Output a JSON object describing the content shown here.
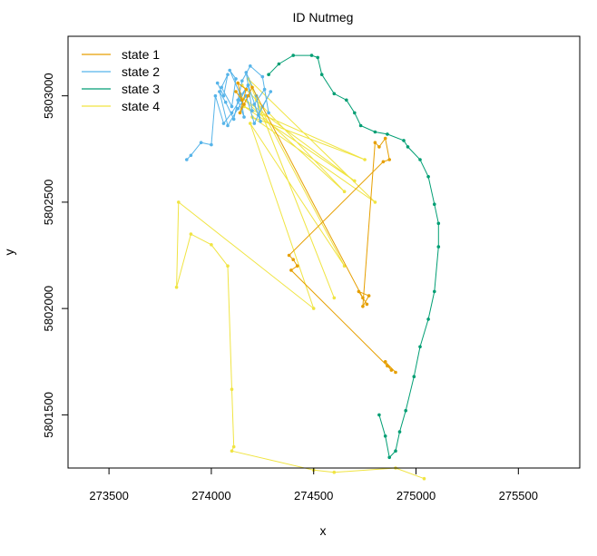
{
  "chart_data": {
    "type": "line",
    "title": "ID Nutmeg",
    "xlabel": "x",
    "ylabel": "y",
    "xlim": [
      273300,
      275800
    ],
    "ylim": [
      5801250,
      5803280
    ],
    "xticks": [
      273500,
      274000,
      274500,
      275000,
      275500
    ],
    "yticks": [
      5801500,
      5802000,
      5802500,
      5803000
    ],
    "xtick_labels": [
      "273500",
      "274000",
      "274500",
      "275000",
      "275500"
    ],
    "ytick_labels": [
      "5801500",
      "5802000",
      "5802500",
      "5803000"
    ],
    "grid": false,
    "legend_position": "top-left",
    "series": [
      {
        "name": "state 1",
        "color": "#E69F00",
        "x": [
          274120,
          274150,
          274130,
          274170,
          274140,
          274180,
          274160,
          274200,
          274740,
          274760,
          274720,
          274770,
          274740,
          274800,
          274820,
          274850,
          274870,
          274840,
          274380,
          274400,
          274420,
          274390,
          274860,
          274880,
          274850,
          274900
        ],
        "y": [
          5803020,
          5802980,
          5803060,
          5803030,
          5802920,
          5803000,
          5802960,
          5803040,
          5802050,
          5802020,
          5802080,
          5802060,
          5802010,
          5802780,
          5802760,
          5802800,
          5802700,
          5802690,
          5802250,
          5802230,
          5802200,
          5802180,
          5801730,
          5801710,
          5801750,
          5801700
        ]
      },
      {
        "name": "state 2",
        "color": "#56B4E9",
        "x": [
          274030,
          274060,
          274080,
          274050,
          274100,
          274120,
          274090,
          274140,
          274160,
          274130,
          274180,
          274200,
          274170,
          274220,
          274240,
          274210,
          274260,
          274280,
          274250,
          274190,
          274150,
          274110,
          274070,
          274040,
          274080,
          274130,
          274170,
          274210,
          274250,
          274290,
          274230,
          274180,
          274140,
          274100,
          274060,
          274020,
          274000,
          273950,
          273900,
          273880
        ],
        "y": [
          5803060,
          5803000,
          5803100,
          5803040,
          5802950,
          5803080,
          5803120,
          5803010,
          5802900,
          5802980,
          5803050,
          5802930,
          5803110,
          5803000,
          5802880,
          5802960,
          5803030,
          5802920,
          5803090,
          5803140,
          5803070,
          5802890,
          5802970,
          5803020,
          5802860,
          5802940,
          5803000,
          5802870,
          5802950,
          5803020,
          5802910,
          5803050,
          5802980,
          5802920,
          5802870,
          5803000,
          5802770,
          5802780,
          5802720,
          5802700
        ]
      },
      {
        "name": "state 3",
        "color": "#009E73",
        "x": [
          274280,
          274330,
          274400,
          274490,
          274520,
          274540,
          274600,
          274660,
          274700,
          274730,
          274800,
          274860,
          274940,
          274960,
          275020,
          275060,
          275090,
          275110,
          275110,
          275090,
          275060,
          275020,
          274990,
          274950,
          274920,
          274900,
          274870,
          274850,
          274820
        ],
        "y": [
          5803100,
          5803150,
          5803190,
          5803190,
          5803180,
          5803100,
          5803010,
          5802980,
          5802920,
          5802860,
          5802830,
          5802820,
          5802790,
          5802760,
          5802700,
          5802620,
          5802490,
          5802400,
          5802290,
          5802080,
          5801950,
          5801820,
          5801680,
          5801520,
          5801420,
          5801330,
          5801300,
          5801400,
          5801500
        ]
      },
      {
        "name": "state 4",
        "color": "#F0E442",
        "x": [
          274150,
          274650,
          274140,
          274700,
          274160,
          274750,
          274200,
          274800,
          274180,
          274600,
          274220,
          274650,
          274190,
          274500,
          273840,
          273830,
          273900,
          274000,
          274080,
          274100,
          274110,
          274100,
          274500,
          274600,
          274900,
          275040
        ],
        "y": [
          5803050,
          5802550,
          5803000,
          5802600,
          5802950,
          5802700,
          5802900,
          5802500,
          5803080,
          5802050,
          5802980,
          5802200,
          5802870,
          5802000,
          5802500,
          5802100,
          5802350,
          5802300,
          5802200,
          5801620,
          5801350,
          5801330,
          5801240,
          5801230,
          5801250,
          5801200
        ]
      }
    ]
  }
}
